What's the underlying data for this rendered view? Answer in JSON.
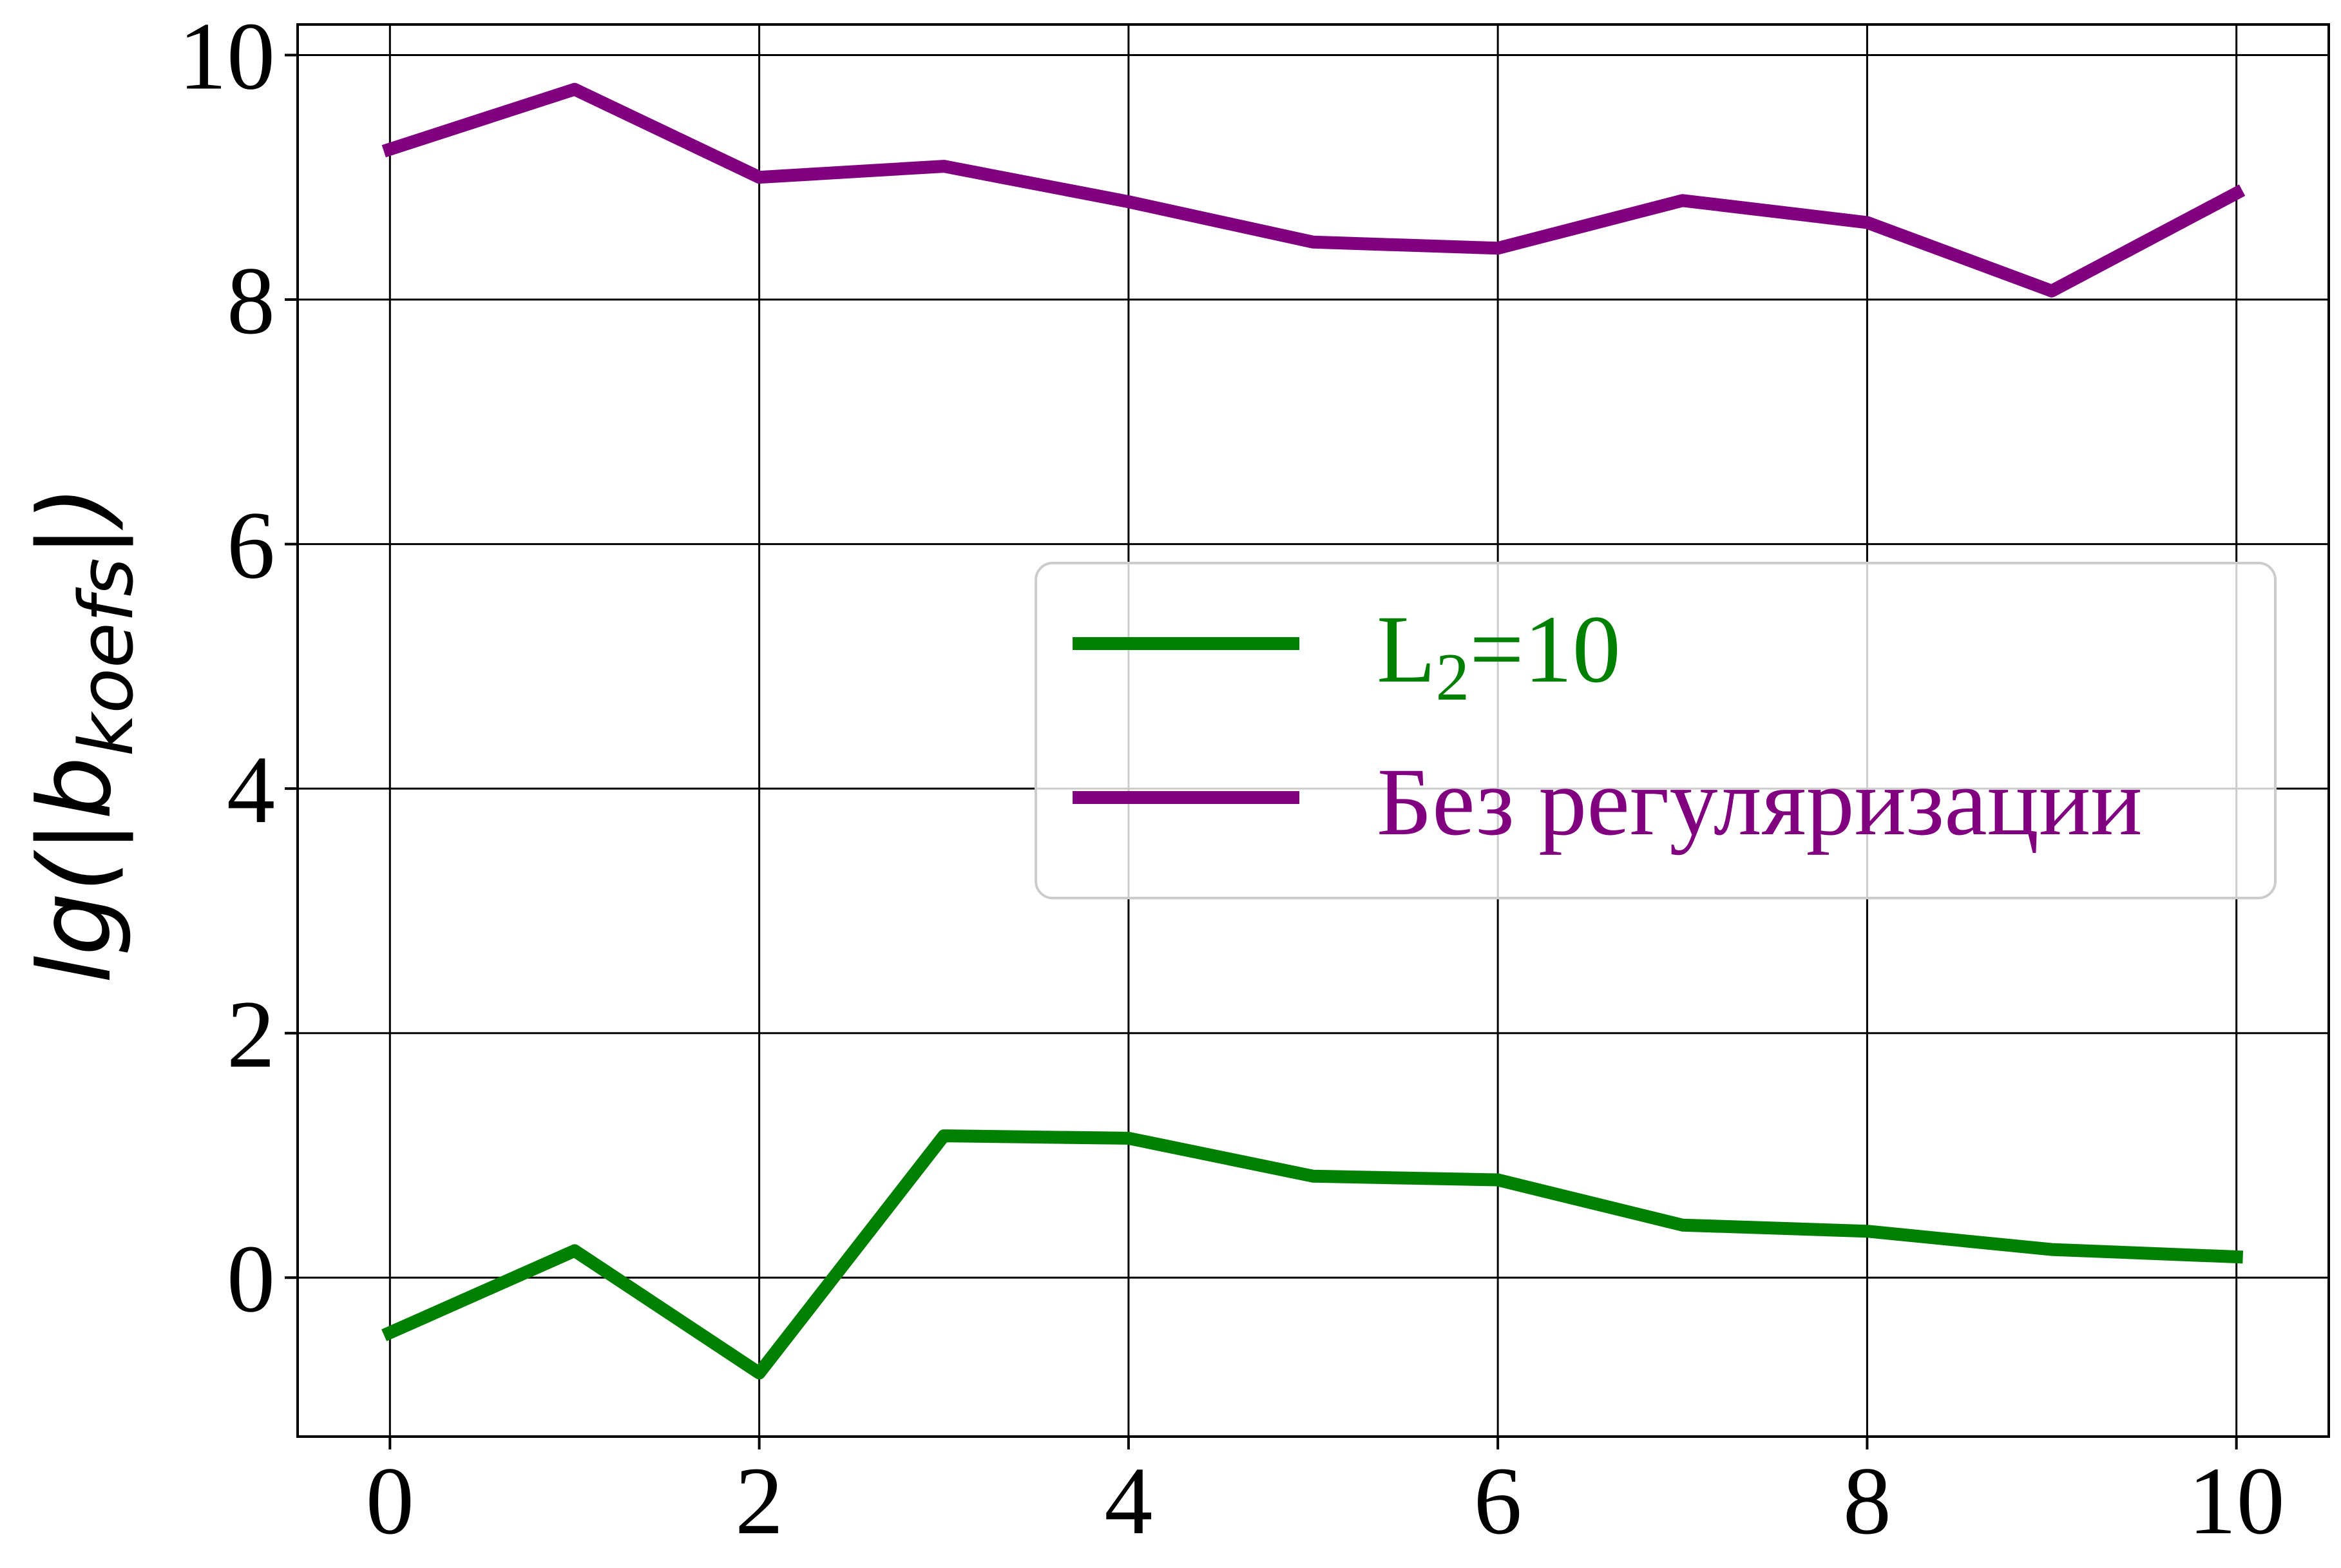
{
  "chart_data": {
    "type": "line",
    "title": "",
    "xlabel": "",
    "ylabel": "lg(|b",
    "ylabel_sub": "koefs",
    "ylabel_close": "|)",
    "x": [
      0,
      1,
      2,
      3,
      4,
      5,
      6,
      7,
      8,
      9,
      10
    ],
    "xlim": [
      -0.5,
      10.5
    ],
    "ylim": [
      -1.3,
      10.25
    ],
    "xticks": [
      0,
      2,
      4,
      6,
      8,
      10
    ],
    "yticks": [
      0,
      2,
      4,
      6,
      8,
      10
    ],
    "grid": true,
    "legend_position": "center-right",
    "series": [
      {
        "name": "L",
        "name_sub": "2",
        "name_rest": "=10",
        "color": "#008000",
        "values": [
          -0.45,
          0.22,
          -0.78,
          1.16,
          1.14,
          0.83,
          0.8,
          0.43,
          0.38,
          0.23,
          0.17
        ]
      },
      {
        "name": "Без регуляризации",
        "color": "#800080",
        "values": [
          9.23,
          9.72,
          9.0,
          9.09,
          8.8,
          8.47,
          8.42,
          8.81,
          8.63,
          8.07,
          8.87
        ]
      }
    ]
  }
}
